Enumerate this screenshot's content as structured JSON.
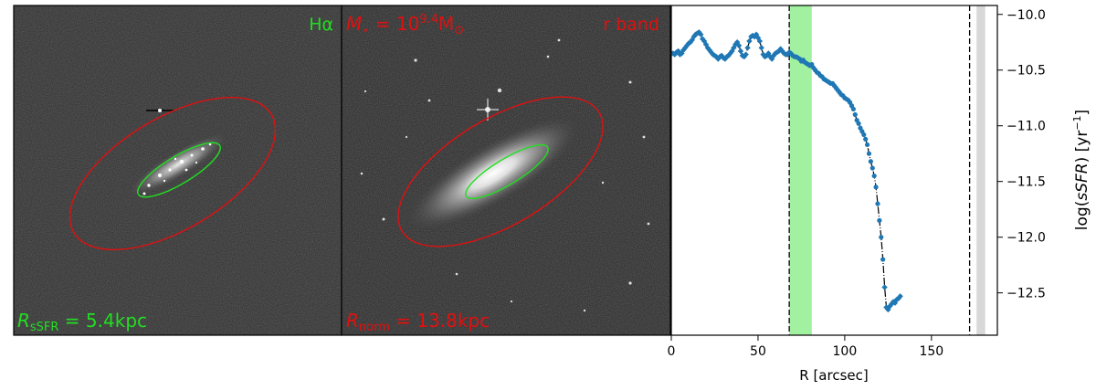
{
  "panels": {
    "halpha": {
      "band_label": "Hα",
      "radius_label_main": "R",
      "radius_label_sub": "sSFR",
      "radius_value": " = 5.4kpc"
    },
    "rband": {
      "band_label": "r band",
      "mass_label_main": "M",
      "mass_label_sub": "⋆",
      "mass_eq": " = 10",
      "mass_exp": "9.4",
      "mass_unit": "M",
      "mass_unit_sub": "⊙",
      "radius_label_main": "R",
      "radius_label_sub": "norm",
      "radius_value": " = 13.8kpc"
    }
  },
  "colors": {
    "halpha_label": "#22dd22",
    "rband_label": "#e01010",
    "inner_ellipse": "#22dd22",
    "outer_ellipse": "#e01010",
    "profile_points": "#1f77b4",
    "fit_line": "#000000",
    "green_band": "#90ee90",
    "grey_band": "#d8d8d8",
    "image_bg": "#2a2a2a"
  },
  "chart_data": {
    "type": "scatter",
    "xlabel": "R [arcsec]",
    "ylabel_prefix": "log(",
    "ylabel_italic": "sSFR",
    "ylabel_suffix": ") [yr",
    "ylabel_exp": "−1",
    "ylabel_close": "]",
    "xlim": [
      0,
      188
    ],
    "ylim": [
      -12.88,
      -9.92
    ],
    "xticks": [
      0,
      50,
      100,
      150
    ],
    "xtick_labels": [
      "0",
      "50",
      "100",
      "150"
    ],
    "yticks": [
      -10.0,
      -10.5,
      -11.0,
      -11.5,
      -12.0,
      -12.5
    ],
    "ytick_labels": [
      "−10.0",
      "−10.5",
      "−11.0",
      "−11.5",
      "−12.0",
      "−12.5"
    ],
    "vlines_dashed": [
      68,
      172
    ],
    "green_band": [
      68,
      81
    ],
    "grey_band": [
      176,
      181
    ],
    "series": [
      {
        "x": [
          1,
          2,
          3,
          4,
          5,
          6,
          7,
          8,
          9,
          10,
          11,
          12,
          13,
          14,
          15,
          16,
          17,
          18,
          19,
          20,
          21,
          22,
          23,
          24,
          25,
          26,
          27,
          28,
          29,
          30,
          31,
          32,
          33,
          34,
          35,
          36,
          37,
          38,
          39,
          40,
          41,
          42,
          43,
          44,
          45,
          46,
          47,
          48,
          49,
          50,
          51,
          52,
          53,
          54,
          55,
          56,
          57,
          58,
          59,
          60,
          61,
          62,
          63,
          64,
          65,
          66,
          67,
          68,
          69,
          70,
          71,
          72,
          73,
          74,
          75,
          76,
          77,
          78,
          79,
          80,
          81,
          82,
          83,
          84,
          85,
          86,
          87,
          88,
          89,
          90,
          91,
          92,
          93,
          94,
          95,
          96,
          97,
          98,
          99,
          100,
          101,
          102,
          103,
          104,
          105,
          106,
          107,
          108,
          109,
          110,
          111,
          112,
          113,
          114,
          115,
          116,
          117,
          118,
          119,
          120,
          121,
          122,
          123,
          124,
          125,
          126,
          127,
          128,
          129,
          130,
          131,
          132
        ],
        "y": [
          -10.35,
          -10.36,
          -10.34,
          -10.33,
          -10.36,
          -10.35,
          -10.32,
          -10.3,
          -10.28,
          -10.26,
          -10.25,
          -10.23,
          -10.2,
          -10.18,
          -10.17,
          -10.16,
          -10.18,
          -10.22,
          -10.24,
          -10.27,
          -10.3,
          -10.32,
          -10.34,
          -10.36,
          -10.37,
          -10.38,
          -10.4,
          -10.38,
          -10.37,
          -10.39,
          -10.4,
          -10.38,
          -10.37,
          -10.35,
          -10.33,
          -10.3,
          -10.27,
          -10.25,
          -10.28,
          -10.33,
          -10.37,
          -10.38,
          -10.36,
          -10.3,
          -10.24,
          -10.2,
          -10.19,
          -10.2,
          -10.18,
          -10.21,
          -10.24,
          -10.3,
          -10.36,
          -10.38,
          -10.37,
          -10.35,
          -10.38,
          -10.4,
          -10.37,
          -10.35,
          -10.34,
          -10.33,
          -10.31,
          -10.33,
          -10.35,
          -10.36,
          -10.36,
          -10.34,
          -10.35,
          -10.37,
          -10.38,
          -10.38,
          -10.39,
          -10.4,
          -10.42,
          -10.41,
          -10.43,
          -10.44,
          -10.45,
          -10.46,
          -10.45,
          -10.48,
          -10.5,
          -10.52,
          -10.53,
          -10.55,
          -10.56,
          -10.58,
          -10.59,
          -10.6,
          -10.61,
          -10.62,
          -10.62,
          -10.64,
          -10.66,
          -10.68,
          -10.7,
          -10.72,
          -10.73,
          -10.75,
          -10.76,
          -10.77,
          -10.79,
          -10.82,
          -10.85,
          -10.9,
          -10.95,
          -10.98,
          -11.02,
          -11.05,
          -11.08,
          -11.12,
          -11.17,
          -11.25,
          -11.32,
          -11.38,
          -11.45,
          -11.55,
          -11.7,
          -11.85,
          -12.0,
          -12.2,
          -12.45,
          -12.63,
          -12.65,
          -12.62,
          -12.6,
          -12.58,
          -12.59,
          -12.56,
          -12.55,
          -12.53
        ]
      }
    ]
  }
}
